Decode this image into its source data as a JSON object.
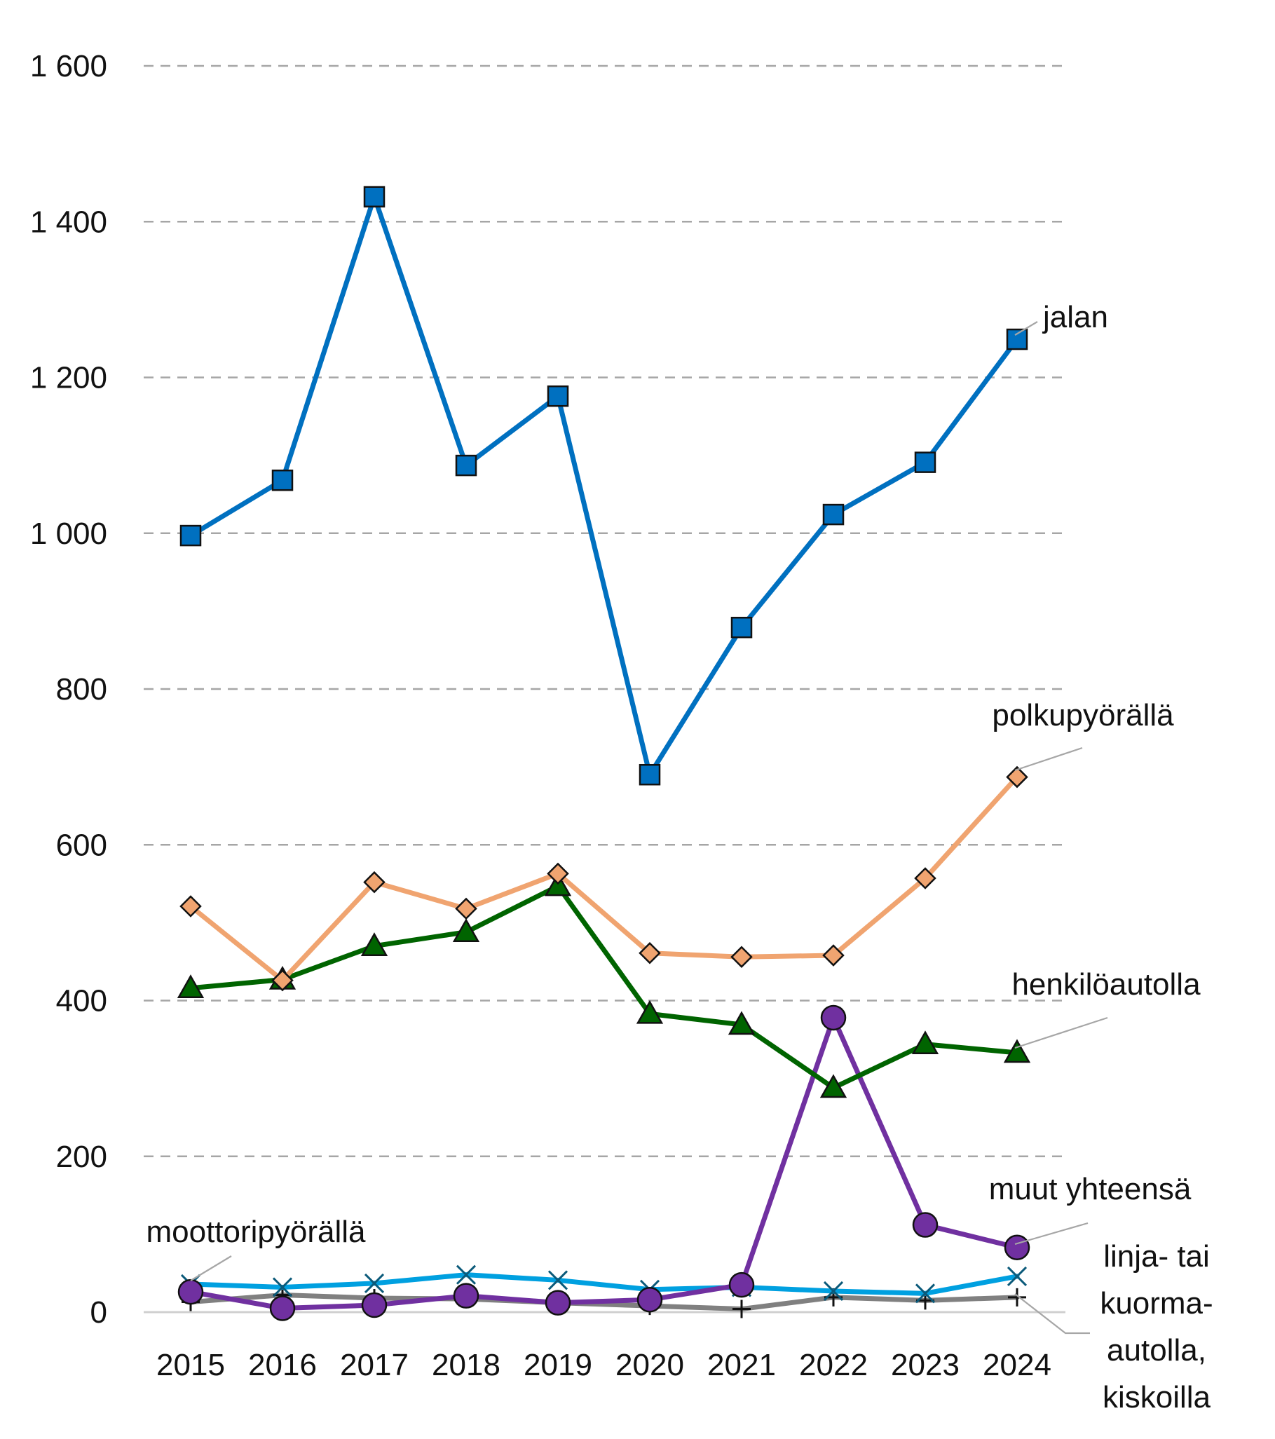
{
  "chart_data": {
    "type": "line",
    "title": "",
    "xlabel": "",
    "ylabel": "",
    "ylim": [
      0,
      1600
    ],
    "yticks": [
      0,
      200,
      400,
      600,
      800,
      1000,
      1200,
      1400,
      1600
    ],
    "ytick_labels": [
      "0",
      "200",
      "400",
      "600",
      "800",
      "1 000",
      "1 200",
      "1 400",
      "1 600"
    ],
    "grid": "horizontal dashed",
    "legend": "direct labels at line ends",
    "categories": [
      "2015",
      "2016",
      "2017",
      "2018",
      "2019",
      "2020",
      "2021",
      "2022",
      "2023",
      "2024"
    ],
    "series": [
      {
        "name": "jalan",
        "label_lines": [
          "jalan"
        ],
        "color": "#0070c0",
        "marker": "square",
        "values": [
          997,
          1068,
          1432,
          1087,
          1176,
          690,
          879,
          1024,
          1091,
          1249
        ]
      },
      {
        "name": "polkupyörällä",
        "label_lines": [
          "polkupyörällä"
        ],
        "color": "#f0a470",
        "marker": "diamond",
        "values": [
          521,
          426,
          552,
          518,
          563,
          461,
          456,
          458,
          557,
          687
        ]
      },
      {
        "name": "henkilöautolla",
        "label_lines": [
          "henkilöautolla"
        ],
        "color": "#006400",
        "marker": "triangle",
        "values": [
          416,
          427,
          470,
          488,
          547,
          383,
          369,
          288,
          344,
          333
        ]
      },
      {
        "name": "muut yhteensä",
        "label_lines": [
          "muut yhteensä"
        ],
        "color": "#7030a0",
        "marker": "circle",
        "values": [
          26,
          5,
          9,
          21,
          12,
          16,
          35,
          378,
          112,
          83
        ]
      },
      {
        "name": "moottoripyörällä",
        "label_lines": [
          "moottoripyörällä"
        ],
        "color": "#00a0e0",
        "marker": "x",
        "values": [
          36,
          32,
          37,
          48,
          41,
          29,
          32,
          27,
          24,
          46
        ]
      },
      {
        "name": "linja- tai kuorma-autolla, kiskoilla",
        "label_lines": [
          "linja- tai",
          "kuorma-",
          "autolla,",
          "kiskoilla"
        ],
        "color": "#808080",
        "marker": "plus",
        "values": [
          13,
          22,
          18,
          17,
          12,
          8,
          4,
          19,
          15,
          19
        ]
      }
    ]
  }
}
